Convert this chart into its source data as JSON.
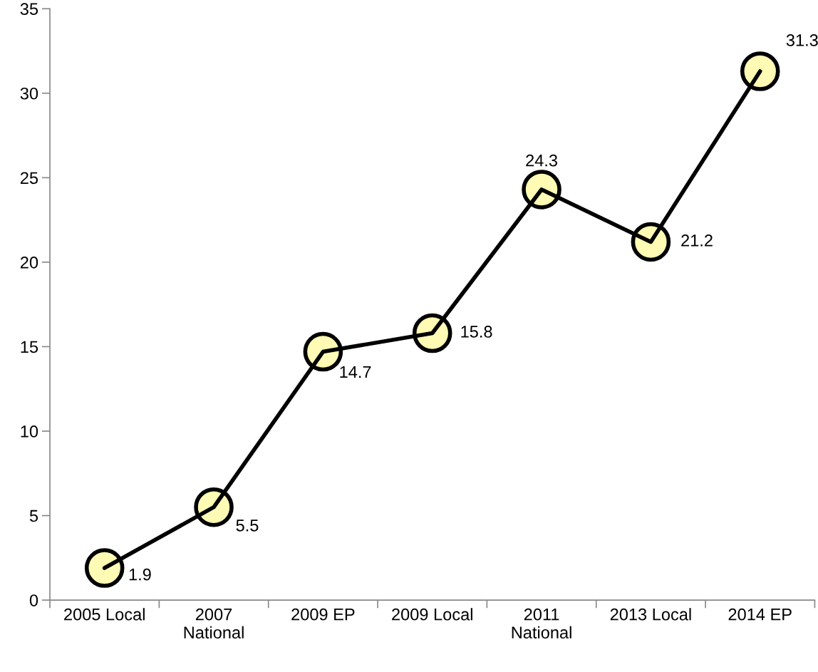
{
  "chart_data": {
    "type": "line",
    "categories": [
      "2005 Local",
      "2007\nNational",
      "2009 EP",
      "2009 Local",
      "2011\nNational",
      "2013 Local",
      "2014 EP"
    ],
    "series": [
      {
        "color": "#000000",
        "values": [
          1.9,
          5.5,
          14.7,
          15.8,
          24.3,
          21.2,
          31.3
        ]
      },
      {
        "type": "scatter",
        "color": "#fffbb5",
        "marker": "circle",
        "values": [
          1.9,
          5.5,
          14.7,
          15.8,
          24.3,
          21.2,
          31.3
        ],
        "value_labels": [
          "1.9",
          "5.5",
          "14.7",
          "15.8",
          "24.3",
          "21.2",
          "31.3"
        ]
      }
    ],
    "line_style": "solid",
    "grid": false,
    "legend": false,
    "ylim": [
      0,
      35
    ],
    "yticks": [
      0,
      5,
      10,
      15,
      20,
      25,
      30,
      35
    ]
  }
}
